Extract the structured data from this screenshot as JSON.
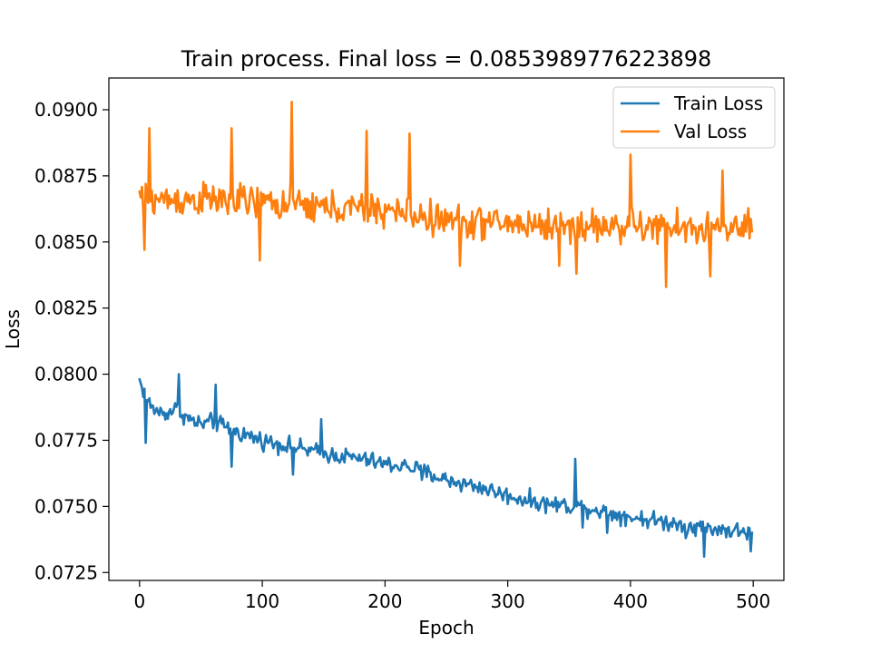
{
  "chart_data": {
    "type": "line",
    "title": "Train process. Final loss = 0.0853989776223898",
    "xlabel": "Epoch",
    "ylabel": "Loss",
    "xlim": [
      -25,
      525
    ],
    "ylim": [
      0.0722,
      0.0912
    ],
    "xticks": [
      0,
      100,
      200,
      300,
      400,
      500
    ],
    "yticks": [
      0.0725,
      0.075,
      0.0775,
      0.08,
      0.0825,
      0.085,
      0.0875,
      0.09
    ],
    "ytick_labels": [
      "0.0725",
      "0.0750",
      "0.0775",
      "0.0800",
      "0.0825",
      "0.0850",
      "0.0875",
      "0.0900"
    ],
    "grid": false,
    "legend_position": "top-right",
    "series": [
      {
        "name": "Train Loss",
        "color": "#1f77b4",
        "epochs": [
          0,
          499
        ],
        "trend_points": [
          [
            0,
            0.0797
          ],
          [
            10,
            0.0787
          ],
          [
            20,
            0.0785
          ],
          [
            30,
            0.0787
          ],
          [
            40,
            0.0783
          ],
          [
            50,
            0.0781
          ],
          [
            60,
            0.0782
          ],
          [
            80,
            0.0778
          ],
          [
            100,
            0.0775
          ],
          [
            120,
            0.0773
          ],
          [
            150,
            0.077
          ],
          [
            180,
            0.0768
          ],
          [
            200,
            0.0766
          ],
          [
            220,
            0.0765
          ],
          [
            250,
            0.076
          ],
          [
            280,
            0.0757
          ],
          [
            300,
            0.0754
          ],
          [
            330,
            0.0751
          ],
          [
            360,
            0.075
          ],
          [
            400,
            0.0746
          ],
          [
            430,
            0.0744
          ],
          [
            460,
            0.0742
          ],
          [
            499,
            0.074
          ]
        ],
        "noise_amplitude": 0.00048,
        "anchor_points": [
          [
            0,
            0.0798
          ],
          [
            5,
            0.0774
          ],
          [
            32,
            0.08
          ],
          [
            62,
            0.0796
          ],
          [
            75,
            0.0765
          ],
          [
            125,
            0.0762
          ],
          [
            148,
            0.0783
          ],
          [
            230,
            0.076
          ],
          [
            355,
            0.0768
          ],
          [
            361,
            0.0742
          ],
          [
            381,
            0.074
          ],
          [
            445,
            0.0738
          ],
          [
            460,
            0.0731
          ],
          [
            498,
            0.0733
          ],
          [
            499,
            0.074
          ]
        ]
      },
      {
        "name": "Val Loss",
        "color": "#ff7f0e",
        "epochs": [
          0,
          499
        ],
        "trend_points": [
          [
            0,
            0.0866
          ],
          [
            50,
            0.0866
          ],
          [
            100,
            0.0865
          ],
          [
            150,
            0.0863
          ],
          [
            200,
            0.0862
          ],
          [
            250,
            0.0858
          ],
          [
            300,
            0.0857
          ],
          [
            350,
            0.0856
          ],
          [
            400,
            0.0856
          ],
          [
            450,
            0.0855
          ],
          [
            499,
            0.0855
          ]
        ],
        "noise_amplitude": 0.00095,
        "anchor_points": [
          [
            0,
            0.0869
          ],
          [
            4,
            0.0847
          ],
          [
            8,
            0.0893
          ],
          [
            75,
            0.0893
          ],
          [
            98,
            0.0843
          ],
          [
            124,
            0.0903
          ],
          [
            185,
            0.0892
          ],
          [
            220,
            0.0891
          ],
          [
            261,
            0.0841
          ],
          [
            342,
            0.0841
          ],
          [
            356,
            0.0838
          ],
          [
            400,
            0.0883
          ],
          [
            429,
            0.0833
          ],
          [
            465,
            0.0837
          ],
          [
            475,
            0.0877
          ],
          [
            499,
            0.0854
          ]
        ]
      }
    ]
  }
}
